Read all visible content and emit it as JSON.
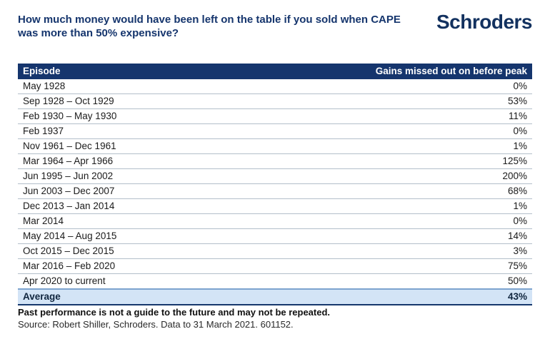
{
  "header": {
    "logo_text": "Schroders"
  },
  "chart_data": {
    "type": "table",
    "title": "How much money would have been left on the table if you sold when CAPE was more than 50% expensive?",
    "columns": [
      "Episode",
      "Gains missed out on before peak"
    ],
    "rows": [
      {
        "episode": "May 1928",
        "gains": "0%"
      },
      {
        "episode": "Sep 1928 – Oct 1929",
        "gains": "53%"
      },
      {
        "episode": "Feb 1930 – May 1930",
        "gains": "11%"
      },
      {
        "episode": "Feb 1937",
        "gains": "0%"
      },
      {
        "episode": "Nov 1961 – Dec 1961",
        "gains": "1%"
      },
      {
        "episode": "Mar 1964 – Apr 1966",
        "gains": "125%"
      },
      {
        "episode": "Jun 1995 – Jun 2002",
        "gains": "200%"
      },
      {
        "episode": "Jun 2003 – Dec 2007",
        "gains": "68%"
      },
      {
        "episode": "Dec 2013 – Jan 2014",
        "gains": "1%"
      },
      {
        "episode": "Mar 2014",
        "gains": "0%"
      },
      {
        "episode": "May 2014 – Aug 2015",
        "gains": "14%"
      },
      {
        "episode": "Oct 2015 – Dec 2015",
        "gains": "3%"
      },
      {
        "episode": "Mar 2016 – Feb 2020",
        "gains": "75%"
      },
      {
        "episode": "Apr 2020 to current",
        "gains": "50%"
      }
    ],
    "average_label": "Average",
    "average_value": "43%",
    "values_numeric_pct": [
      0,
      53,
      11,
      0,
      1,
      125,
      200,
      68,
      1,
      0,
      14,
      3,
      75,
      50
    ],
    "average_numeric_pct": 43
  },
  "footer": {
    "disclaimer": "Past performance is not a guide to the future and may not be repeated.",
    "source": "Source: Robert Shiller, Schroders. Data to 31 March 2021. 601152."
  },
  "colors": {
    "navy": "#15356d",
    "header_bg": "#15356d",
    "average_bg": "#d3e4f6",
    "row_divider": "#b3bfca",
    "logo_navy": "#12315f"
  }
}
